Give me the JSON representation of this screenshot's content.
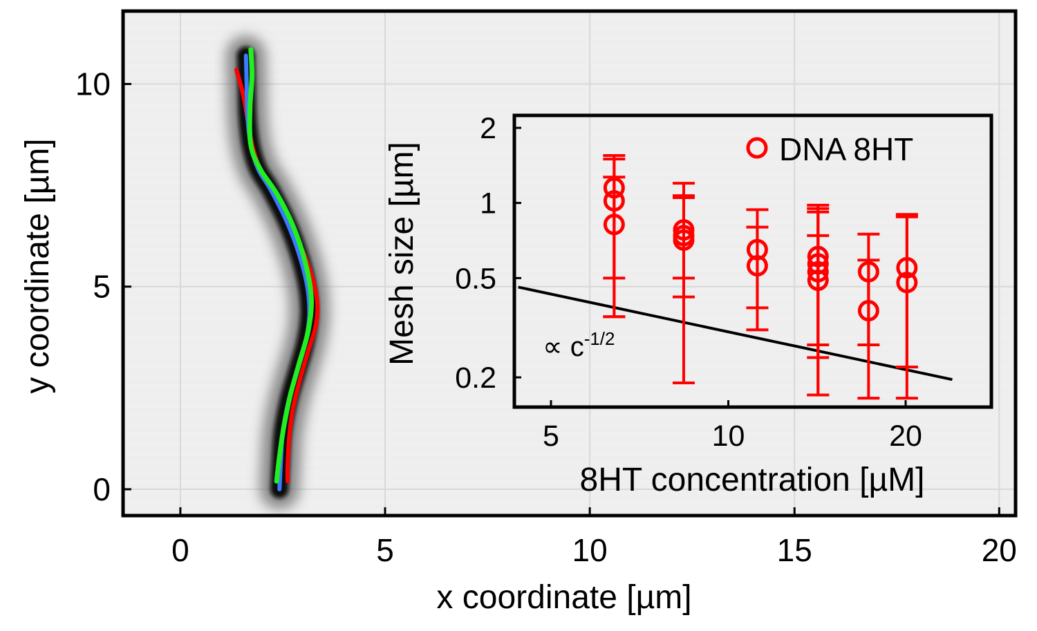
{
  "chart_data": [
    {
      "type": "line",
      "xlabel": "x coordinate [µm]",
      "ylabel": "y coordinate [µm]",
      "xlim": [
        -1.4,
        20.4
      ],
      "ylim": [
        -0.65,
        11.8
      ],
      "xticks": [
        0,
        5,
        10,
        15,
        20
      ],
      "yticks": [
        0,
        5,
        10
      ],
      "background": "grayscale microscopy image of a curved DNA filament",
      "series": [
        {
          "color": "#ff0000",
          "x": [
            1.37,
            1.52,
            1.63,
            1.73,
            1.87,
            2.1,
            2.45,
            2.8,
            3.1,
            3.28,
            3.35,
            3.3,
            3.12,
            2.92,
            2.75,
            2.66,
            2.62,
            2.62
          ],
          "y": [
            10.35,
            9.8,
            9.2,
            8.6,
            8.1,
            7.6,
            7.0,
            6.3,
            5.6,
            5.0,
            4.5,
            4.0,
            3.4,
            2.7,
            2.0,
            1.3,
            0.6,
            0.2
          ]
        },
        {
          "color": "#3a7bff",
          "x": [
            1.6,
            1.62,
            1.64,
            1.72,
            1.9,
            2.2,
            2.6,
            2.9,
            3.1,
            3.15,
            3.05,
            2.85,
            2.65,
            2.5,
            2.45,
            2.42
          ],
          "y": [
            10.7,
            10.0,
            9.2,
            8.5,
            7.9,
            7.4,
            6.6,
            5.8,
            5.0,
            4.3,
            3.6,
            2.9,
            2.2,
            1.4,
            0.6,
            0.0
          ]
        },
        {
          "color": "#22ee22",
          "x": [
            1.72,
            1.75,
            1.7,
            1.72,
            1.95,
            2.35,
            2.75,
            3.05,
            3.2,
            3.12,
            2.9,
            2.68,
            2.52,
            2.42,
            2.35
          ],
          "y": [
            10.85,
            10.2,
            9.4,
            8.5,
            7.9,
            7.3,
            6.5,
            5.6,
            4.7,
            3.9,
            3.1,
            2.3,
            1.5,
            0.8,
            0.2
          ]
        }
      ]
    },
    {
      "type": "scatter",
      "xlabel": "8HT concentration [µM]",
      "ylabel": "Mesh size [µm]",
      "xscale": "log",
      "yscale": "log",
      "xticks": [
        5,
        10,
        20
      ],
      "yticks": [
        0.2,
        0.5,
        1,
        2
      ],
      "legend": "top-right",
      "series": [
        {
          "name": "DNA 8HT",
          "color": "#ff0000",
          "marker": "open-circle",
          "points": [
            {
              "x": 6.4,
              "y": 1.15,
              "ylow": 0.5,
              "yhigh": 1.55
            },
            {
              "x": 6.4,
              "y": 1.02,
              "ylow": 0.35,
              "yhigh": 1.5
            },
            {
              "x": 6.4,
              "y": 0.82,
              "ylow": 0.35,
              "yhigh": 1.27
            },
            {
              "x": 8.4,
              "y": 0.78,
              "ylow": 0.5,
              "yhigh": 1.07
            },
            {
              "x": 8.4,
              "y": 0.74,
              "ylow": 0.42,
              "yhigh": 1.2
            },
            {
              "x": 8.4,
              "y": 0.71,
              "ylow": 0.19,
              "yhigh": 1.05
            },
            {
              "x": 11.2,
              "y": 0.65,
              "ylow": 0.38,
              "yhigh": 0.94
            },
            {
              "x": 11.2,
              "y": 0.56,
              "ylow": 0.31,
              "yhigh": 0.8
            },
            {
              "x": 14.2,
              "y": 0.61,
              "ylow": 0.27,
              "yhigh": 0.98
            },
            {
              "x": 14.2,
              "y": 0.57,
              "ylow": 0.17,
              "yhigh": 0.95
            },
            {
              "x": 14.2,
              "y": 0.53,
              "ylow": 0.24,
              "yhigh": 0.92
            },
            {
              "x": 14.2,
              "y": 0.49,
              "ylow": 0.17,
              "yhigh": 0.74
            },
            {
              "x": 17.3,
              "y": 0.53,
              "ylow": 0.165,
              "yhigh": 0.75
            },
            {
              "x": 17.3,
              "y": 0.37,
              "ylow": 0.27,
              "yhigh": 0.59
            },
            {
              "x": 20.1,
              "y": 0.55,
              "ylow": 0.165,
              "yhigh": 0.9
            },
            {
              "x": 20.1,
              "y": 0.48,
              "ylow": 0.22,
              "yhigh": 0.88
            }
          ]
        }
      ],
      "reference_line": {
        "label": "∝ c",
        "exponent": "-1/2",
        "color": "#000000",
        "x": [
          4.4,
          24.0
        ],
        "y": [
          0.46,
          0.196
        ]
      }
    }
  ]
}
